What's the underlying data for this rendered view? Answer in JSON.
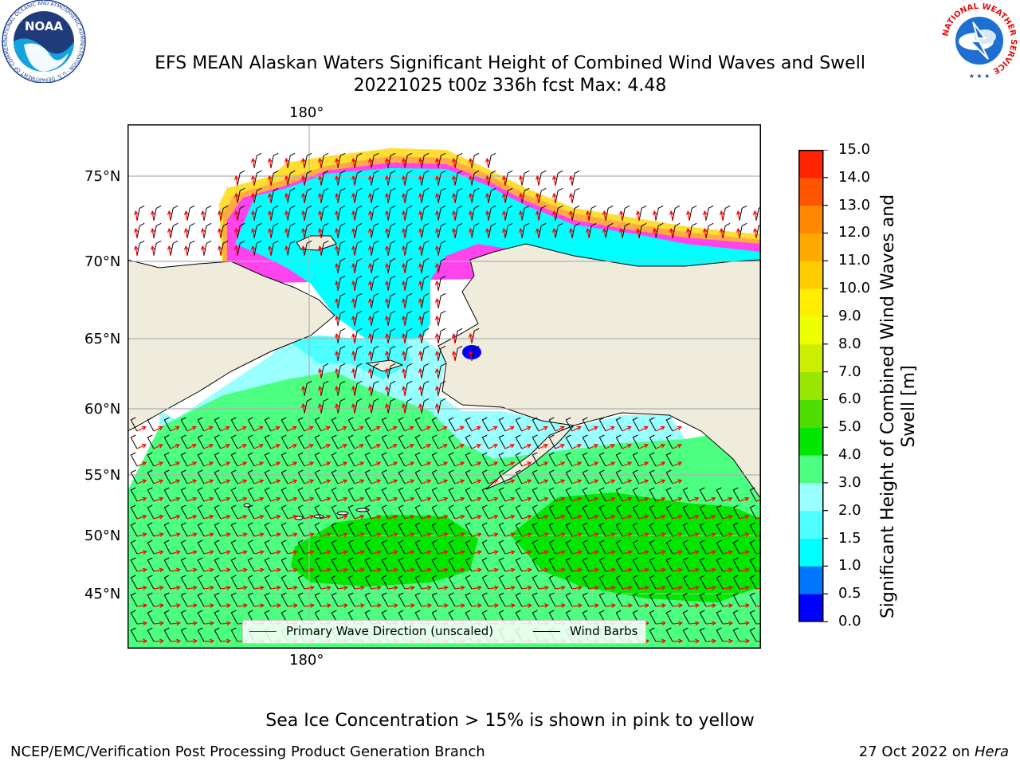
{
  "title": {
    "line1": "EFS MEAN Alaskan Waters Significant Height of Combined Wind Waves and Swell",
    "line2": "20221025 t00z 336h fcst   Max: 4.48"
  },
  "map": {
    "lon_label_top": "180°",
    "lon_label_bottom": "180°",
    "lat_labels": [
      "75°N",
      "70°N",
      "65°N",
      "60°N",
      "55°N",
      "50°N",
      "45°N"
    ],
    "colors": {
      "land": "#efecdc",
      "ocean_low": "#00ffff",
      "ocean_mid": "#99ffff",
      "ocean_high": "#4dff80",
      "ocean_peak": "#00e600",
      "ice_pink": "#ff44ee",
      "ice_yellow": "#ffee33",
      "wave_arrow": "#ff0000",
      "wind_barb": "#000000",
      "grid": "#b0b0b0"
    },
    "legend": {
      "wave_direction": "Primary Wave Direction (unscaled)",
      "wind_barbs": "Wind Barbs"
    }
  },
  "colorbar": {
    "label": "Significant Height of Combined Wind Waves and Swell [m]",
    "ticks": [
      "0.0",
      "0.5",
      "1.0",
      "1.5",
      "2.0",
      "3.0",
      "4.0",
      "5.0",
      "6.0",
      "7.0",
      "8.0",
      "9.0",
      "10.0",
      "11.0",
      "12.0",
      "13.0",
      "14.0",
      "15.0"
    ],
    "colors": [
      "#0000ff",
      "#0077ff",
      "#00ffff",
      "#4dffff",
      "#99ffff",
      "#4dff80",
      "#00e600",
      "#4ddd00",
      "#99e600",
      "#ccee00",
      "#eeff00",
      "#ffee00",
      "#ffcc00",
      "#ffaa00",
      "#ff8800",
      "#ff5500",
      "#ff2200"
    ]
  },
  "footer": {
    "note": "Sea Ice Concentration > 15% is shown in pink to yellow",
    "left": "NCEP/EMC/Verification Post Processing Product Generation Branch",
    "right_date": "27 Oct 2022 on",
    "right_host": "Hera"
  },
  "logos": {
    "noaa_text": "NOAA",
    "noaa_ring": "NATIONAL OCEANIC AND ATMOSPHERIC ADMINISTRATION · U.S. DEPARTMENT OF COMMERCE",
    "nws_ring": "NATIONAL WEATHER SERVICE"
  }
}
